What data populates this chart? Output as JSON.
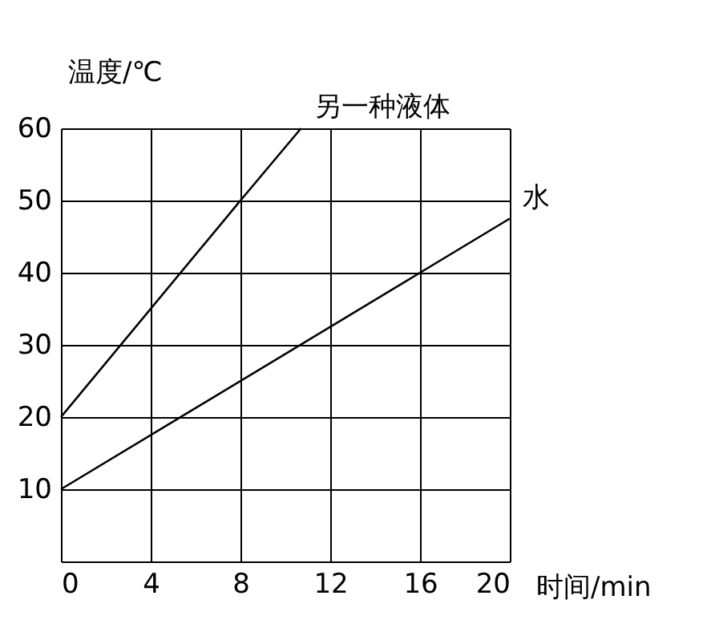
{
  "chart_data": {
    "type": "line",
    "xlabel": "时间/min",
    "ylabel": "温度/℃",
    "xlim": [
      0,
      20
    ],
    "ylim": [
      0,
      60
    ],
    "xticks": [
      0,
      4,
      8,
      12,
      16,
      20
    ],
    "yticks": [
      10,
      20,
      30,
      40,
      50,
      60
    ],
    "grid": true,
    "legend": false,
    "marker": "none",
    "line_style": "solid",
    "series": [
      {
        "name": "另一种液体",
        "color": "#000000",
        "x": [
          0,
          8,
          10.7
        ],
        "values": [
          20,
          50,
          60
        ]
      },
      {
        "name": "水",
        "color": "#000000",
        "x": [
          0,
          16,
          20
        ],
        "values": [
          10,
          40,
          47.5
        ]
      }
    ]
  }
}
